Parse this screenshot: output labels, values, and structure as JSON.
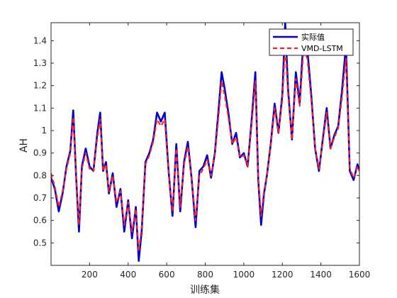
{
  "chart_data": {
    "type": "line",
    "title": "",
    "xlabel": "训练集",
    "ylabel": "AH",
    "xlim": [
      0,
      1600
    ],
    "ylim": [
      0.4,
      1.48
    ],
    "xticks": [
      200,
      400,
      600,
      800,
      1000,
      1200,
      1400,
      1600
    ],
    "yticks": [
      0.5,
      0.6,
      0.7,
      0.8,
      0.9,
      1,
      1.1,
      1.2,
      1.3,
      1.4
    ],
    "grid": false,
    "legend_position": "top-right",
    "x": [
      0,
      20,
      40,
      60,
      80,
      100,
      115,
      130,
      145,
      160,
      180,
      200,
      220,
      240,
      255,
      270,
      285,
      300,
      320,
      340,
      360,
      380,
      400,
      420,
      440,
      455,
      470,
      490,
      510,
      530,
      550,
      570,
      590,
      610,
      630,
      650,
      670,
      690,
      710,
      730,
      750,
      770,
      790,
      810,
      830,
      850,
      870,
      885,
      900,
      920,
      940,
      960,
      980,
      1000,
      1020,
      1040,
      1060,
      1075,
      1090,
      1105,
      1120,
      1140,
      1160,
      1180,
      1200,
      1215,
      1230,
      1250,
      1270,
      1290,
      1310,
      1330,
      1350,
      1370,
      1390,
      1410,
      1430,
      1450,
      1470,
      1490,
      1510,
      1530,
      1550,
      1570,
      1590,
      1600
    ],
    "series": [
      {
        "name": "实际值",
        "color": "#0000cc",
        "style": "solid",
        "values": [
          0.79,
          0.74,
          0.64,
          0.72,
          0.84,
          0.91,
          1.09,
          0.8,
          0.55,
          0.84,
          0.92,
          0.84,
          0.82,
          0.99,
          1.08,
          0.82,
          0.86,
          0.72,
          0.81,
          0.66,
          0.74,
          0.55,
          0.69,
          0.52,
          0.66,
          0.42,
          0.55,
          0.86,
          0.9,
          0.96,
          1.08,
          1.04,
          1.08,
          0.82,
          0.62,
          0.94,
          0.64,
          0.86,
          0.95,
          0.78,
          0.57,
          0.82,
          0.84,
          0.89,
          0.79,
          0.9,
          1.1,
          1.26,
          1.19,
          1.08,
          0.94,
          0.99,
          0.88,
          0.9,
          0.84,
          1.04,
          1.26,
          0.78,
          0.58,
          0.72,
          0.8,
          0.94,
          1.12,
          0.99,
          1.16,
          1.48,
          1.18,
          0.96,
          1.26,
          1.12,
          1.42,
          1.36,
          1.16,
          0.92,
          0.82,
          0.96,
          1.1,
          0.92,
          0.98,
          1.02,
          1.18,
          1.38,
          0.82,
          0.78,
          0.85,
          0.82
        ]
      },
      {
        "name": "VMD-LSTM",
        "color": "#ff2020",
        "style": "dashed",
        "values": [
          0.81,
          0.75,
          0.66,
          0.73,
          0.83,
          0.9,
          1.06,
          0.8,
          0.58,
          0.83,
          0.9,
          0.83,
          0.82,
          0.97,
          1.05,
          0.82,
          0.85,
          0.73,
          0.8,
          0.68,
          0.73,
          0.58,
          0.68,
          0.55,
          0.65,
          0.46,
          0.57,
          0.85,
          0.89,
          0.95,
          1.05,
          1.02,
          1.05,
          0.81,
          0.64,
          0.92,
          0.66,
          0.85,
          0.93,
          0.78,
          0.6,
          0.8,
          0.83,
          0.87,
          0.8,
          0.89,
          1.07,
          1.22,
          1.16,
          1.06,
          0.94,
          0.97,
          0.88,
          0.89,
          0.84,
          1.02,
          1.22,
          0.79,
          0.62,
          0.73,
          0.8,
          0.93,
          1.1,
          0.99,
          1.14,
          1.38,
          1.16,
          0.96,
          1.23,
          1.11,
          1.36,
          1.32,
          1.14,
          0.92,
          0.83,
          0.95,
          1.08,
          0.92,
          0.97,
          1.01,
          1.15,
          1.32,
          0.83,
          0.79,
          0.84,
          0.82
        ]
      }
    ]
  }
}
